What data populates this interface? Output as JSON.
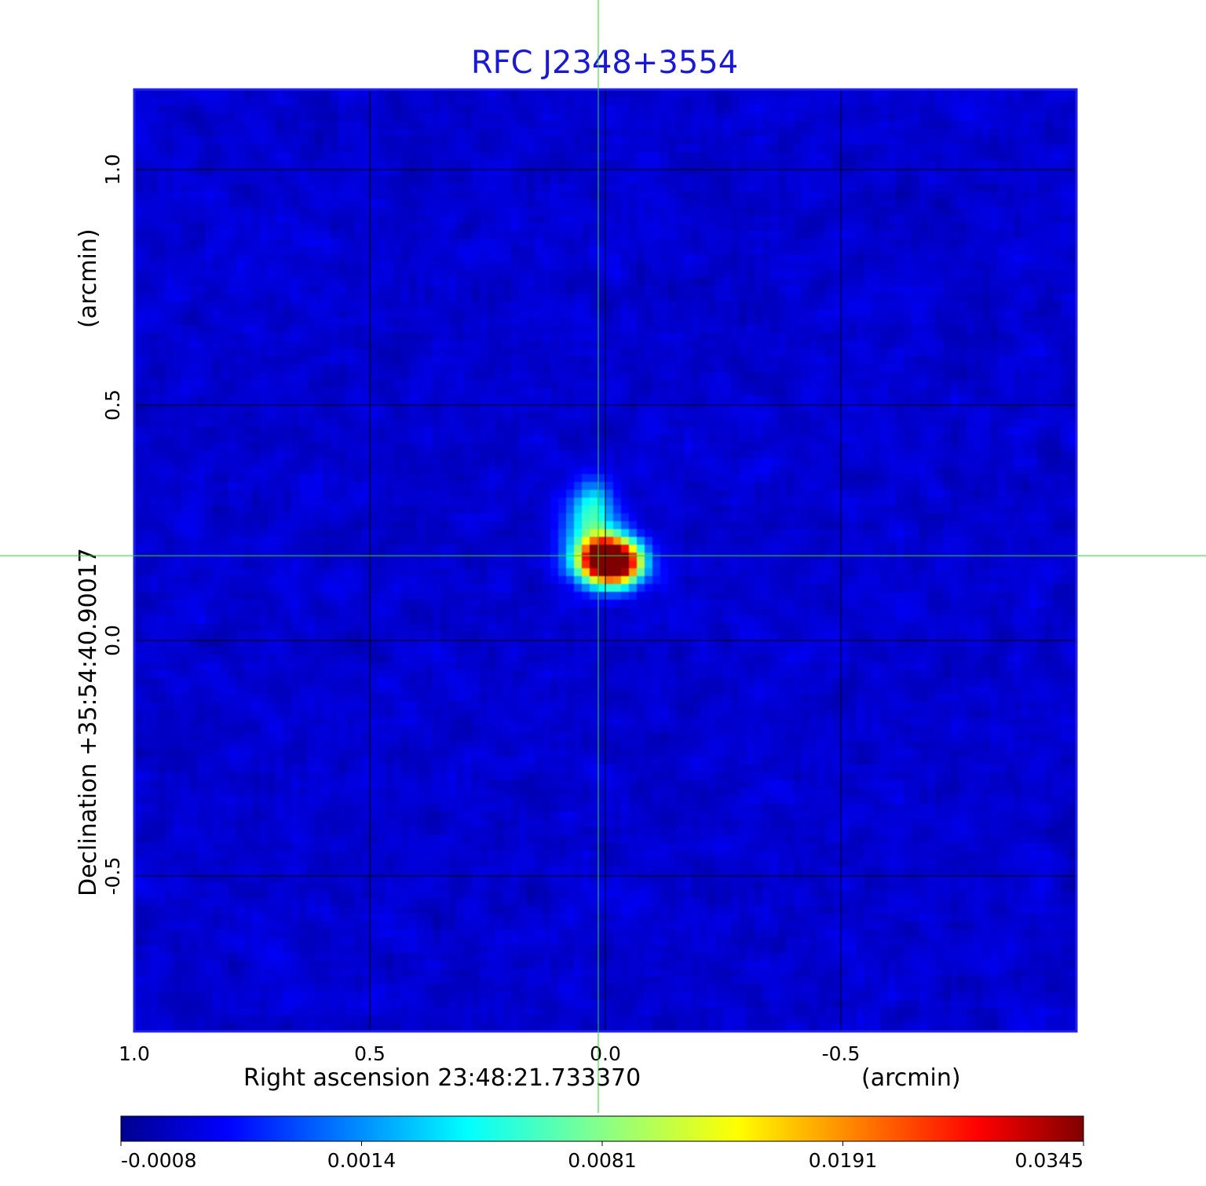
{
  "chart_data": {
    "type": "heatmap",
    "title": "RFC J2348+3554",
    "xlabel": "Right ascension  23:48:21.733370",
    "xunit": "(arcmin)",
    "ylabel": "Declination  +35:54:40.90017",
    "yunit": "(arcmin)",
    "xlim": [
      1.0,
      -1.0
    ],
    "ylim": [
      -0.83,
      1.17
    ],
    "x_ticks": [
      {
        "value": 1.0,
        "label": "1.0"
      },
      {
        "value": 0.5,
        "label": "0.5"
      },
      {
        "value": 0.0,
        "label": "0.0"
      },
      {
        "value": -0.5,
        "label": "-0.5"
      }
    ],
    "y_ticks": [
      {
        "value": 1.0,
        "label": "1.0"
      },
      {
        "value": 0.5,
        "label": "0.5"
      },
      {
        "value": 0.0,
        "label": "0.0"
      },
      {
        "value": -0.5,
        "label": "-0.5"
      }
    ],
    "grid": true,
    "crosshair": {
      "x": 0.015,
      "y": 0.18,
      "color": "#22dd22"
    },
    "colorbar": {
      "orientation": "horizontal",
      "position": "bottom",
      "tick_labels": [
        "-0.0008",
        "0.0014",
        "0.0081",
        "0.0191",
        "0.0345"
      ],
      "min": -0.0008,
      "max": 0.0345
    },
    "colormap": "jet",
    "background_level": 0.08,
    "sources": [
      {
        "x": 0.0,
        "y": 0.175,
        "sx": 0.045,
        "sy": 0.035,
        "peak": 0.97
      },
      {
        "x": -0.025,
        "y": 0.16,
        "sx": 0.04,
        "sy": 0.03,
        "peak": 0.55
      },
      {
        "x": 0.03,
        "y": 0.27,
        "sx": 0.035,
        "sy": 0.045,
        "peak": 0.36
      }
    ],
    "colors": {
      "frame": "#1f22e6",
      "grid": "#000000",
      "title": "#1a1ad6"
    }
  }
}
